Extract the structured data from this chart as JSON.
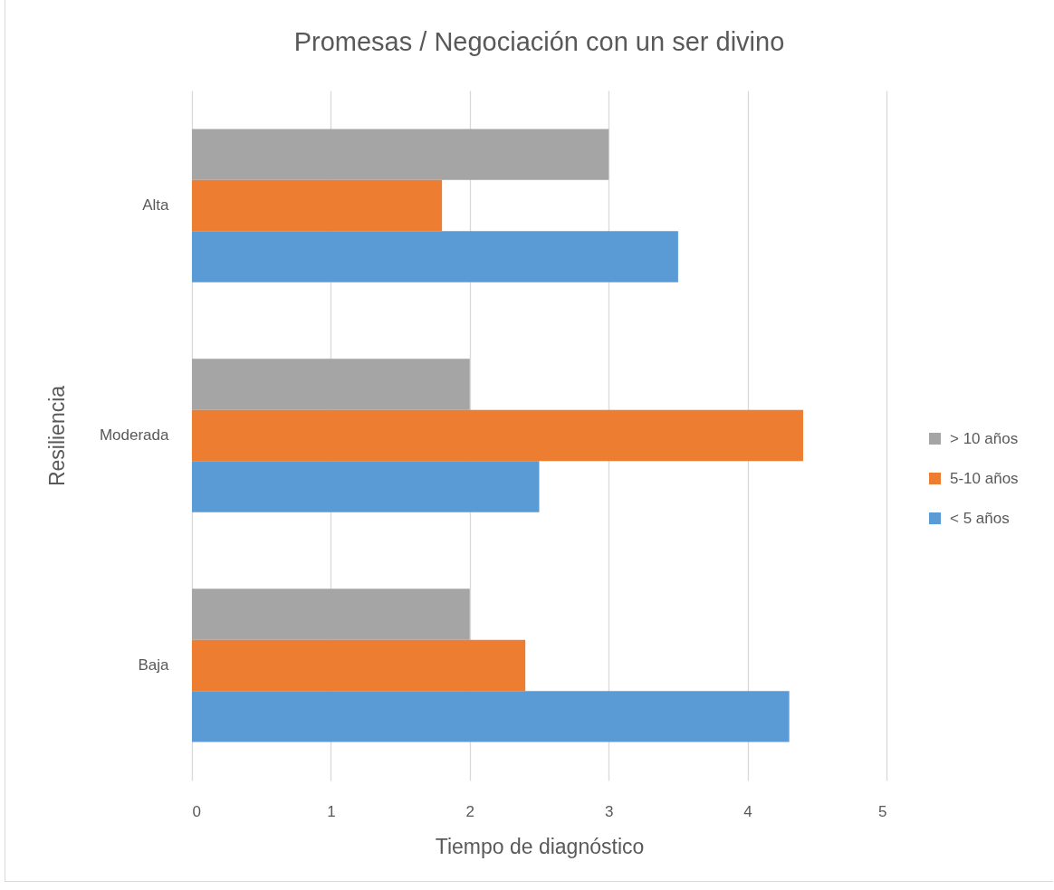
{
  "chart_data": {
    "type": "bar",
    "orientation": "horizontal",
    "title": "Promesas / Negociación con un ser divino",
    "xlabel": "Tiempo de diagnóstico",
    "ylabel": "Resiliencia",
    "categories": [
      "Alta",
      "Moderada",
      "Baja"
    ],
    "series": [
      {
        "name": "> 10 años",
        "color": "#a5a5a5",
        "values": [
          3.0,
          2.0,
          2.0
        ]
      },
      {
        "name": "5-10 años",
        "color": "#ed7d31",
        "values": [
          1.8,
          4.4,
          2.4
        ]
      },
      {
        "name": "< 5 años",
        "color": "#5b9bd5",
        "values": [
          3.5,
          2.5,
          4.3
        ]
      }
    ],
    "xlim": [
      0,
      5
    ],
    "xticks": [
      0,
      1,
      2,
      3,
      4,
      5
    ],
    "grid": "x",
    "legend": "right"
  }
}
